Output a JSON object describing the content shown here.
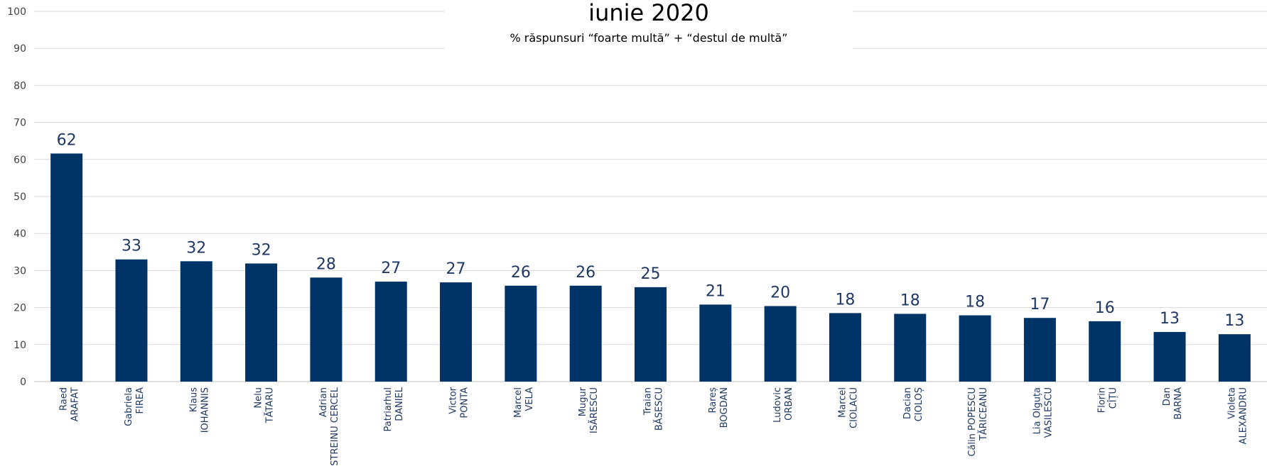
{
  "chart_data": {
    "type": "bar",
    "title": "iunie 2020",
    "subtitle": "% răspunsuri “foarte multă” + “destul de multă”",
    "ylim": [
      0,
      100
    ],
    "yticks": [
      0,
      10,
      20,
      30,
      40,
      50,
      60,
      70,
      80,
      90,
      100
    ],
    "grid": true,
    "bar_color": "#003366",
    "label_color": "#1f3864",
    "categories": [
      [
        "Raed",
        "ARAFAT"
      ],
      [
        "Gabriela",
        "FIREA"
      ],
      [
        "Klaus",
        "IOHANNIS"
      ],
      [
        "Nelu",
        "TĂTARU"
      ],
      [
        "Adrian",
        "STREINU CERCEL"
      ],
      [
        "Patriarhul",
        "DANIEL"
      ],
      [
        "Victor",
        "PONTA"
      ],
      [
        "Marcel",
        "VELA"
      ],
      [
        "Mugur",
        "ISĂRESCU"
      ],
      [
        "Traian",
        "BĂSESCU"
      ],
      [
        "Rareș",
        "BOGDAN"
      ],
      [
        "Ludovic",
        "ORBAN"
      ],
      [
        "Marcel",
        "CIOLACU"
      ],
      [
        "Dacian",
        "CIOLOȘ"
      ],
      [
        "Călin POPESCU",
        "TĂRICEANU"
      ],
      [
        "Lia Olguța",
        "VASILESCU"
      ],
      [
        "Florin",
        "CÎȚU"
      ],
      [
        "Dan",
        "BARNA"
      ],
      [
        "Violeta",
        "ALEXANDRU"
      ]
    ],
    "values": [
      61.6,
      33.0,
      32.5,
      31.9,
      28.1,
      27.0,
      26.8,
      25.9,
      25.9,
      25.5,
      20.8,
      20.4,
      18.5,
      18.3,
      17.9,
      17.2,
      16.3,
      13.4,
      12.8
    ],
    "data_labels": [
      "62",
      "33",
      "32",
      "32",
      "28",
      "27",
      "27",
      "26",
      "26",
      "25",
      "21",
      "20",
      "18",
      "18",
      "18",
      "17",
      "16",
      "13",
      "13"
    ]
  }
}
